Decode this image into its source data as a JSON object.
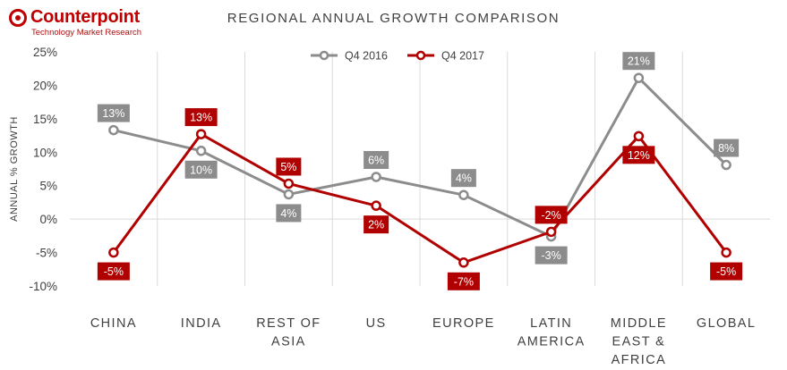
{
  "brand": {
    "name": "Counterpoint",
    "tagline": "Technology Market Research"
  },
  "chart_data": {
    "type": "line",
    "title": "REGIONAL ANNUAL GROWTH COMPARISON",
    "ylabel": "ANNUAL % GROWTH",
    "xlabel": "",
    "ylim": [
      -10,
      25
    ],
    "y_ticks": [
      "25%",
      "20%",
      "15%",
      "10%",
      "5%",
      "0%",
      "-5%",
      "-10%"
    ],
    "y_tick_values": [
      25,
      20,
      15,
      10,
      5,
      0,
      -5,
      -10
    ],
    "categories": [
      [
        "CHINA"
      ],
      [
        "INDIA"
      ],
      [
        "REST OF",
        "ASIA"
      ],
      [
        "US"
      ],
      [
        "EUROPE"
      ],
      [
        "LATIN",
        "AMERICA"
      ],
      [
        "MIDDLE",
        "EAST &",
        "AFRICA"
      ],
      [
        "GLOBAL"
      ]
    ],
    "grid": "vertical",
    "legend_position": "top-center",
    "series": [
      {
        "name": "Q4 2016",
        "color": "#8c8c8c",
        "values": [
          13.3,
          10.2,
          3.7,
          6.3,
          3.6,
          -2.6,
          21.1,
          8.1
        ],
        "labels": [
          "13%",
          "10%",
          "4%",
          "6%",
          "4%",
          "-3%",
          "21%",
          "8%"
        ],
        "label_side": [
          "above",
          "below",
          "below",
          "above",
          "above",
          "below",
          "above",
          "above"
        ]
      },
      {
        "name": "Q4 2017",
        "color": "#b00000",
        "values": [
          -5.0,
          12.7,
          5.3,
          2.0,
          -6.5,
          -1.9,
          12.4,
          -5.0
        ],
        "labels": [
          "-5%",
          "13%",
          "5%",
          "2%",
          "-7%",
          "-2%",
          "12%",
          "-5%"
        ],
        "label_side": [
          "below",
          "above",
          "above",
          "below",
          "below",
          "above",
          "below",
          "below"
        ]
      }
    ]
  }
}
